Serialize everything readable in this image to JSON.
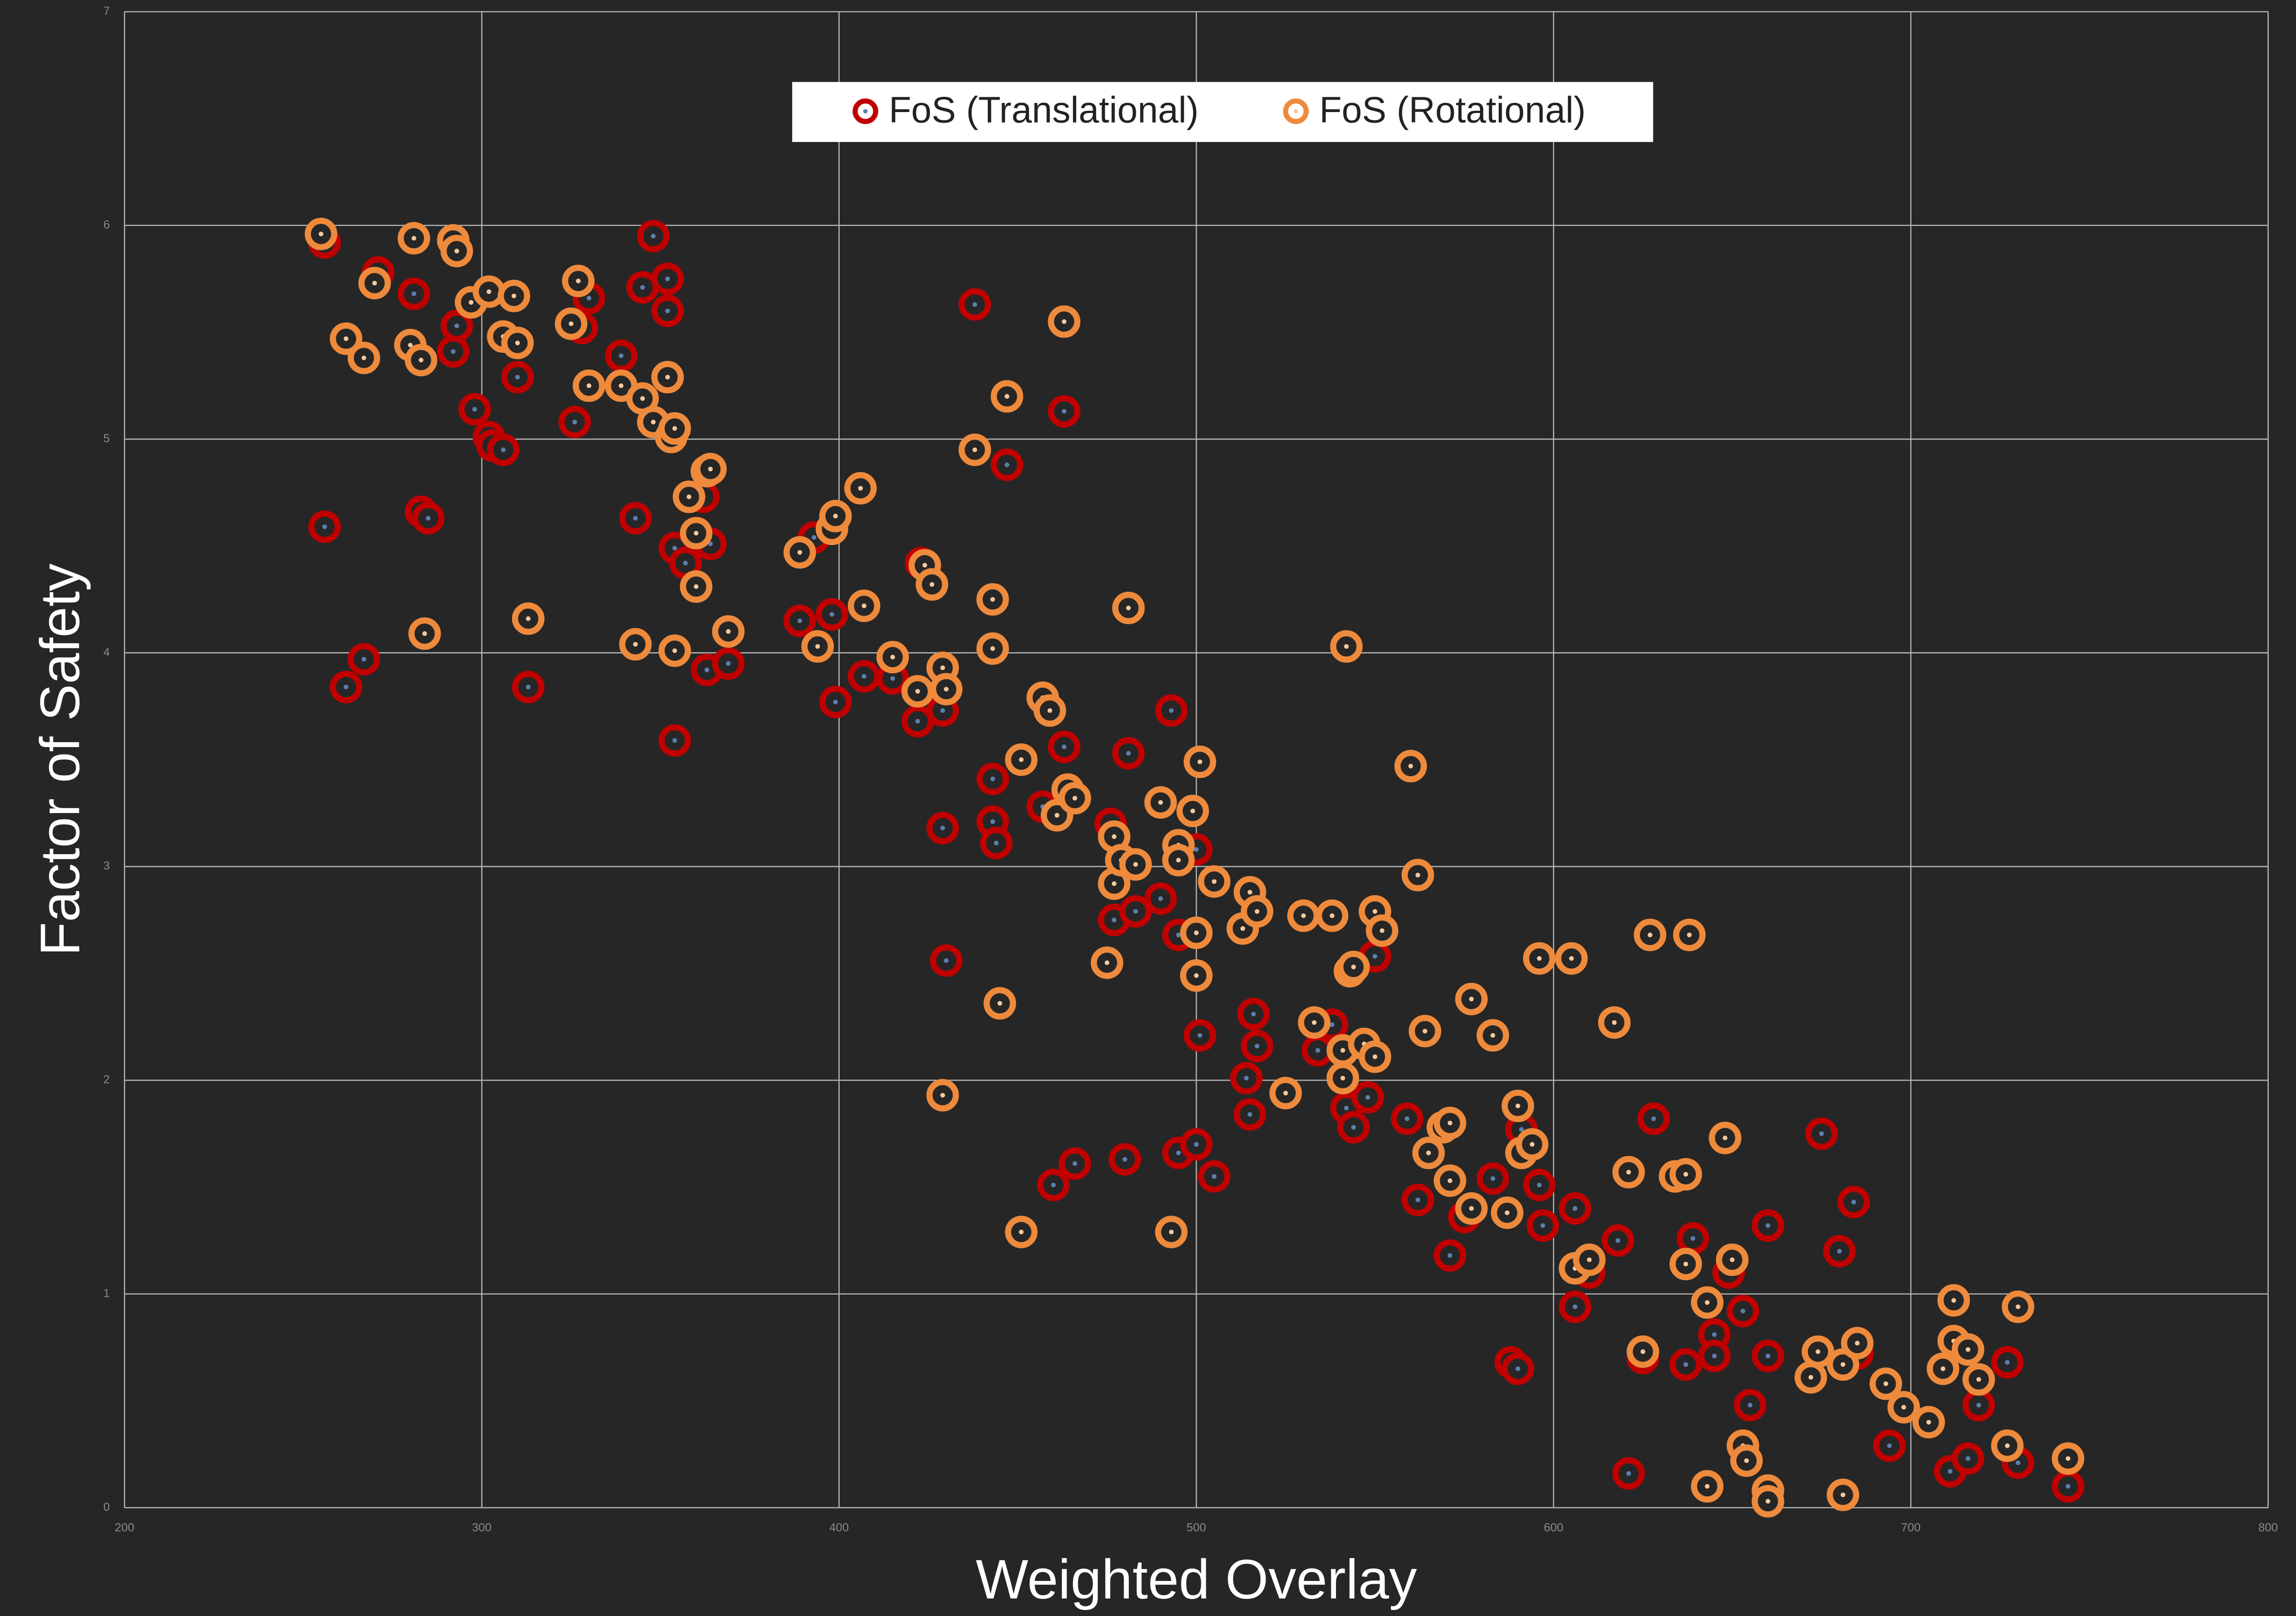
{
  "chart_data": {
    "type": "scatter",
    "xlabel": "Weighted Overlay",
    "ylabel": "Factor of Safety",
    "xlim": [
      200,
      800
    ],
    "xticks": [
      200,
      300,
      400,
      500,
      600,
      700,
      800
    ],
    "ylim": [
      0,
      7
    ],
    "yticks": [
      0,
      1,
      2,
      3,
      4,
      5,
      6,
      7
    ],
    "grid": true,
    "legend": "top",
    "series": [
      {
        "name": "FoS (Translational)",
        "color": "#c00000",
        "x": [
          256,
          256,
          262,
          267,
          271,
          281,
          283,
          285,
          292,
          293,
          298,
          302,
          303,
          306,
          310,
          313,
          326,
          328,
          330,
          339,
          343,
          345,
          348,
          352,
          352,
          354,
          354,
          357,
          363,
          364,
          362,
          369,
          389,
          393,
          398,
          399,
          407,
          415,
          422,
          423,
          429,
          429,
          430,
          438,
          443,
          443,
          444,
          447,
          457,
          460,
          463,
          463,
          466,
          476,
          477,
          480,
          481,
          483,
          490,
          493,
          495,
          495,
          500,
          500,
          501,
          505,
          514,
          515,
          516,
          517,
          534,
          538,
          542,
          544,
          548,
          550,
          559,
          562,
          571,
          575,
          583,
          588,
          590,
          591,
          596,
          597,
          606,
          606,
          610,
          618,
          621,
          625,
          628,
          637,
          639,
          645,
          645,
          649,
          653,
          655,
          660,
          660,
          675,
          680,
          684,
          685,
          694,
          711,
          716,
          719,
          727,
          730,
          744
        ],
        "values": [
          5.92,
          4.59,
          3.84,
          3.97,
          5.78,
          5.68,
          4.66,
          4.63,
          5.41,
          5.53,
          5.14,
          5.01,
          4.97,
          4.95,
          5.29,
          3.84,
          5.08,
          5.52,
          5.66,
          5.39,
          4.63,
          5.71,
          5.95,
          5.75,
          5.6,
          3.59,
          4.49,
          4.42,
          3.92,
          4.51,
          4.73,
          3.95,
          4.15,
          4.54,
          4.18,
          3.77,
          3.89,
          3.88,
          3.68,
          4.42,
          3.73,
          3.18,
          2.56,
          5.63,
          3.41,
          3.21,
          3.11,
          4.88,
          3.28,
          1.51,
          5.13,
          3.56,
          1.61,
          3.2,
          2.75,
          1.63,
          3.53,
          2.79,
          2.85,
          3.73,
          2.68,
          1.66,
          3.08,
          1.7,
          2.21,
          1.55,
          2.01,
          1.84,
          2.31,
          2.16,
          2.14,
          2.26,
          1.87,
          1.78,
          1.92,
          2.58,
          1.82,
          1.44,
          1.18,
          1.36,
          1.54,
          0.68,
          0.65,
          1.77,
          1.51,
          1.32,
          1.4,
          0.94,
          1.1,
          1.25,
          0.16,
          0.7,
          1.82,
          0.67,
          1.26,
          0.81,
          0.71,
          1.1,
          0.92,
          0.48,
          1.32,
          0.71,
          1.75,
          1.2,
          1.43,
          0.72,
          0.29,
          0.17,
          0.23,
          0.48,
          0.68,
          0.21,
          0.1
        ]
      },
      {
        "name": "FoS (Rotational)",
        "color": "#ee8a3c",
        "x": [
          255,
          262,
          267,
          270,
          280,
          281,
          283,
          284,
          292,
          293,
          297,
          302,
          306,
          309,
          310,
          313,
          325,
          327,
          330,
          339,
          343,
          345,
          348,
          352,
          353,
          354,
          354,
          358,
          360,
          360,
          363,
          364,
          369,
          389,
          394,
          398,
          399,
          406,
          407,
          415,
          422,
          424,
          426,
          429,
          430,
          429,
          438,
          443,
          443,
          445,
          447,
          451,
          451,
          457,
          459,
          461,
          463,
          464,
          466,
          475,
          477,
          477,
          481,
          479,
          483,
          490,
          493,
          495,
          495,
          499,
          501,
          500,
          500,
          505,
          513,
          515,
          517,
          525,
          530,
          538,
          542,
          543,
          544,
          533,
          541,
          541,
          547,
          550,
          552,
          550,
          560,
          562,
          564,
          565,
          569,
          571,
          571,
          577,
          577,
          583,
          587,
          590,
          591,
          594,
          596,
          605,
          606,
          610,
          617,
          621,
          625,
          627,
          634,
          637,
          637,
          638,
          643,
          643,
          648,
          650,
          653,
          654,
          660,
          660,
          672,
          674,
          681,
          681,
          685,
          693,
          698,
          705,
          709,
          712,
          712,
          716,
          719,
          727,
          730,
          744
        ],
        "values": [
          5.96,
          5.47,
          5.38,
          5.73,
          5.44,
          5.94,
          5.37,
          4.09,
          5.93,
          5.88,
          5.64,
          5.69,
          5.48,
          5.67,
          5.45,
          4.16,
          5.54,
          5.74,
          5.25,
          5.25,
          4.04,
          5.19,
          5.08,
          5.29,
          5.01,
          5.05,
          4.01,
          4.73,
          4.31,
          4.56,
          4.85,
          4.86,
          4.1,
          4.47,
          4.03,
          4.58,
          4.64,
          4.77,
          4.22,
          3.98,
          3.82,
          4.41,
          4.32,
          3.93,
          3.83,
          1.93,
          4.95,
          4.25,
          4.02,
          2.36,
          5.2,
          3.5,
          1.29,
          3.79,
          3.73,
          3.24,
          5.55,
          3.36,
          3.32,
          2.55,
          3.14,
          2.92,
          4.21,
          3.03,
          3.01,
          3.3,
          1.29,
          3.1,
          3.03,
          3.26,
          3.49,
          2.69,
          2.49,
          2.93,
          2.71,
          2.88,
          2.79,
          1.94,
          2.77,
          2.77,
          4.03,
          2.51,
          2.53,
          2.27,
          2.01,
          2.14,
          2.17,
          2.79,
          2.7,
          2.11,
          3.47,
          2.96,
          2.23,
          1.66,
          1.78,
          1.8,
          1.53,
          2.38,
          1.4,
          2.21,
          1.38,
          1.88,
          1.66,
          1.7,
          2.57,
          2.57,
          1.12,
          1.16,
          2.27,
          1.57,
          0.73,
          2.68,
          1.55,
          1.56,
          1.14,
          2.68,
          0.1,
          0.96,
          1.73,
          1.16,
          0.29,
          0.22,
          0.08,
          0.03,
          0.61,
          0.73,
          0.67,
          0.06,
          0.77,
          0.58,
          0.47,
          0.4,
          0.65,
          0.97,
          0.78,
          0.74,
          0.6,
          0.29,
          0.94,
          0.23
        ]
      }
    ]
  }
}
